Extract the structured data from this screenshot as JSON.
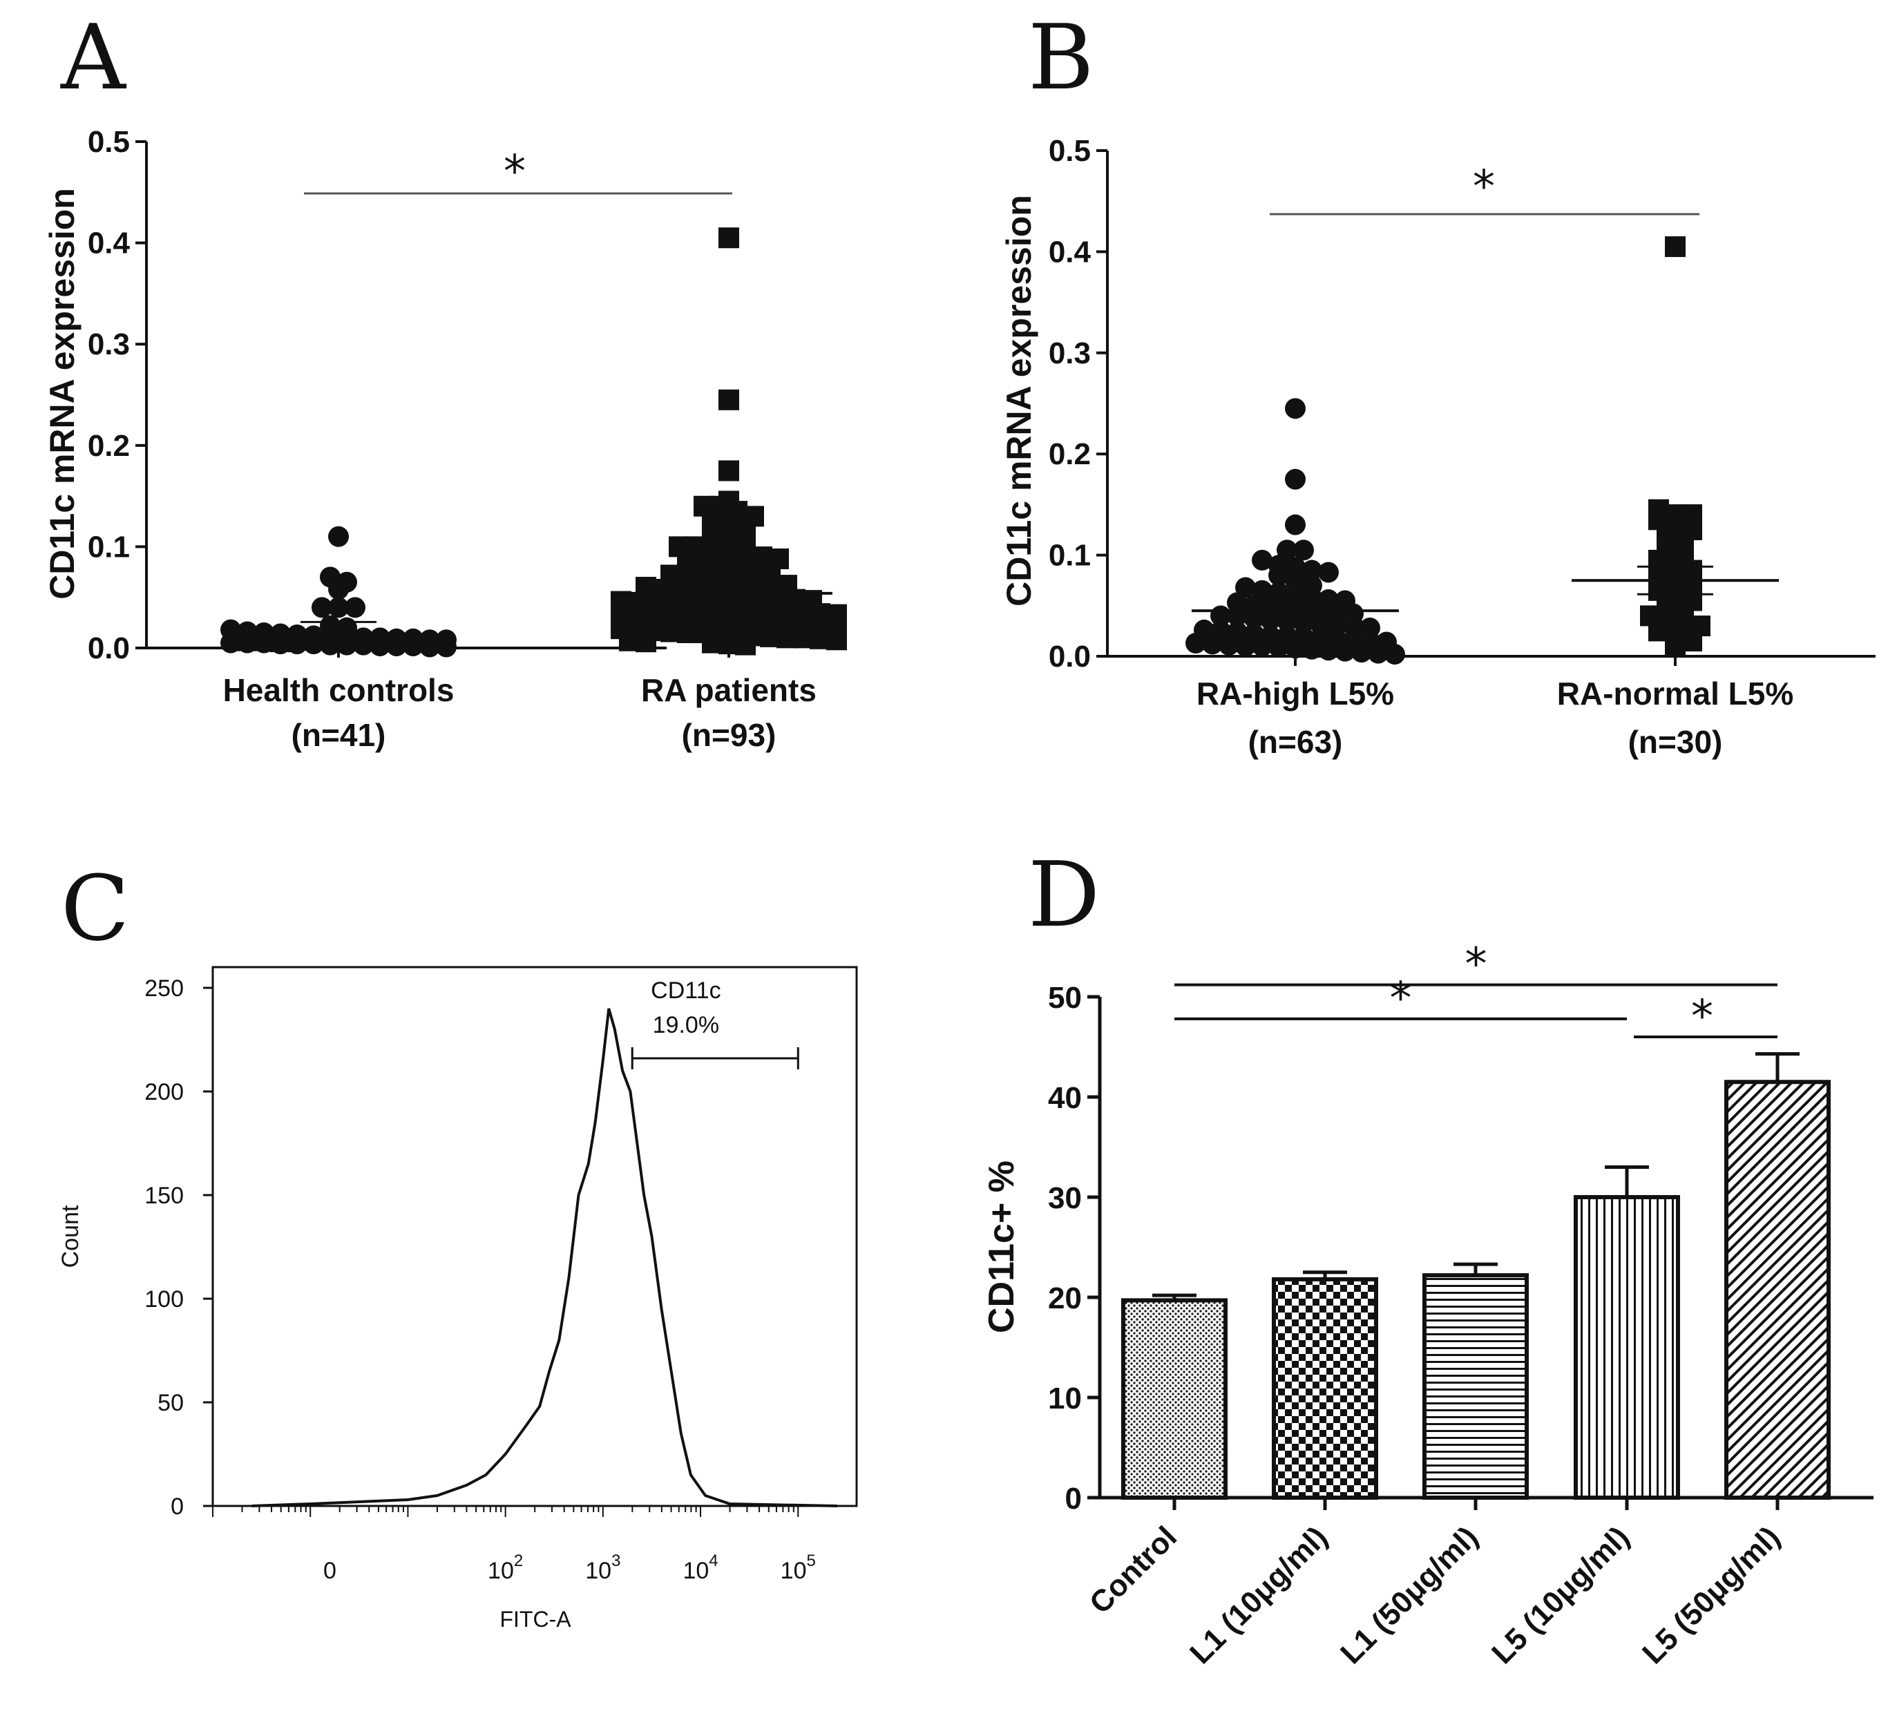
{
  "chart_data": [
    {
      "panel": "A",
      "type": "scatter",
      "ylabel": "CD11c mRNA expression",
      "ylim": [
        0,
        0.5
      ],
      "yticks": [
        "0.0",
        "0.1",
        "0.2",
        "0.3",
        "0.4",
        "0.5"
      ],
      "yticks_values": [
        0,
        0.1,
        0.2,
        0.3,
        0.4,
        0.5
      ],
      "categories": [
        {
          "label": "Health controls",
          "n": "(n=41)",
          "marker": "circle"
        },
        {
          "label": "RA patients",
          "n": "(n=93)",
          "marker": "square"
        }
      ],
      "significance": "*",
      "series": [
        {
          "name": "Health controls",
          "mean": 0.012,
          "values": [
            0.11,
            0.07,
            0.065,
            0.058,
            0.04,
            0.04,
            0.04,
            0.022,
            0.02,
            0.018,
            0.016,
            0.015,
            0.014,
            0.013,
            0.012,
            0.012,
            0.011,
            0.01,
            0.01,
            0.009,
            0.009,
            0.008,
            0.008,
            0.007,
            0.007,
            0.006,
            0.006,
            0.005,
            0.005,
            0.005,
            0.004,
            0.004,
            0.004,
            0.003,
            0.003,
            0.003,
            0.002,
            0.002,
            0.002,
            0.001,
            0.001
          ]
        },
        {
          "name": "RA patients",
          "mean": 0.054,
          "values": [
            0.405,
            0.245,
            0.175,
            0.145,
            0.14,
            0.14,
            0.135,
            0.13,
            0.125,
            0.125,
            0.12,
            0.11,
            0.11,
            0.105,
            0.1,
            0.1,
            0.095,
            0.095,
            0.09,
            0.09,
            0.088,
            0.085,
            0.082,
            0.08,
            0.08,
            0.078,
            0.075,
            0.072,
            0.07,
            0.07,
            0.068,
            0.066,
            0.065,
            0.063,
            0.062,
            0.06,
            0.058,
            0.056,
            0.055,
            0.054,
            0.053,
            0.052,
            0.05,
            0.049,
            0.048,
            0.047,
            0.046,
            0.045,
            0.044,
            0.043,
            0.042,
            0.041,
            0.04,
            0.039,
            0.038,
            0.037,
            0.036,
            0.035,
            0.034,
            0.033,
            0.032,
            0.031,
            0.03,
            0.029,
            0.028,
            0.027,
            0.026,
            0.025,
            0.024,
            0.023,
            0.022,
            0.021,
            0.02,
            0.02,
            0.019,
            0.018,
            0.017,
            0.016,
            0.015,
            0.015,
            0.014,
            0.013,
            0.012,
            0.011,
            0.01,
            0.01,
            0.009,
            0.008,
            0.007,
            0.006,
            0.005,
            0.004,
            0.003
          ]
        }
      ]
    },
    {
      "panel": "B",
      "type": "scatter",
      "ylabel": "CD11c mRNA expression",
      "ylim": [
        0,
        0.5
      ],
      "yticks": [
        "0.0",
        "0.1",
        "0.2",
        "0.3",
        "0.4",
        "0.5"
      ],
      "yticks_values": [
        0,
        0.1,
        0.2,
        0.3,
        0.4,
        0.5
      ],
      "categories": [
        {
          "label": "RA-high L5%",
          "n": "(n=63)",
          "marker": "circle"
        },
        {
          "label": "RA-normal L5%",
          "n": "(n=30)",
          "marker": "square"
        }
      ],
      "significance": "*",
      "series": [
        {
          "name": "RA-high L5%",
          "mean": 0.045,
          "values": [
            0.245,
            0.175,
            0.13,
            0.105,
            0.105,
            0.095,
            0.09,
            0.088,
            0.085,
            0.083,
            0.08,
            0.075,
            0.07,
            0.068,
            0.065,
            0.063,
            0.06,
            0.058,
            0.056,
            0.055,
            0.053,
            0.05,
            0.05,
            0.048,
            0.046,
            0.045,
            0.044,
            0.042,
            0.04,
            0.04,
            0.038,
            0.036,
            0.035,
            0.033,
            0.032,
            0.03,
            0.03,
            0.028,
            0.026,
            0.025,
            0.024,
            0.022,
            0.02,
            0.02,
            0.019,
            0.018,
            0.017,
            0.016,
            0.015,
            0.014,
            0.013,
            0.012,
            0.011,
            0.01,
            0.01,
            0.009,
            0.008,
            0.007,
            0.006,
            0.005,
            0.004,
            0.003,
            0.002
          ]
        },
        {
          "name": "RA-normal L5%",
          "mean": 0.075,
          "values": [
            0.405,
            0.145,
            0.14,
            0.14,
            0.135,
            0.13,
            0.125,
            0.12,
            0.11,
            0.1,
            0.1,
            0.095,
            0.09,
            0.085,
            0.08,
            0.075,
            0.07,
            0.065,
            0.06,
            0.055,
            0.05,
            0.045,
            0.04,
            0.035,
            0.03,
            0.03,
            0.025,
            0.02,
            0.015,
            0.01
          ]
        }
      ]
    },
    {
      "panel": "C",
      "type": "line",
      "xlabel": "FITC-A",
      "ylabel": "Count",
      "ylim": [
        0,
        260
      ],
      "yticks": [
        "0",
        "50",
        "100",
        "150",
        "200",
        "250"
      ],
      "yticks_values": [
        0,
        50,
        100,
        150,
        200,
        250
      ],
      "xlim": [
        -1,
        5.6
      ],
      "xticks": [
        {
          "value": 0.2,
          "base": "0",
          "exp": ""
        },
        {
          "value": 2,
          "base": "10",
          "exp": "2"
        },
        {
          "value": 3,
          "base": "10",
          "exp": "3"
        },
        {
          "value": 4,
          "base": "10",
          "exp": "4"
        },
        {
          "value": 5,
          "base": "10",
          "exp": "5"
        }
      ],
      "gate": {
        "label": "CD11c",
        "value": "19.0%",
        "from": 3.3,
        "to": 5.0,
        "y": 216
      },
      "histogram": {
        "x": [
          -0.6,
          0.0,
          0.5,
          1.0,
          1.3,
          1.6,
          1.8,
          2.0,
          2.2,
          2.35,
          2.45,
          2.55,
          2.65,
          2.75,
          2.85,
          2.92,
          3.0,
          3.06,
          3.12,
          3.2,
          3.28,
          3.35,
          3.42,
          3.5,
          3.6,
          3.7,
          3.8,
          3.9,
          4.05,
          4.3,
          5.4
        ],
        "y": [
          0,
          1,
          2,
          3,
          5,
          10,
          15,
          25,
          38,
          48,
          65,
          80,
          110,
          150,
          165,
          185,
          215,
          240,
          230,
          210,
          200,
          175,
          150,
          130,
          95,
          65,
          35,
          15,
          5,
          1,
          0
        ]
      }
    },
    {
      "panel": "D",
      "type": "bar",
      "ylabel": "CD11c+ %",
      "ylim": [
        0,
        50
      ],
      "yticks": [
        "0",
        "10",
        "20",
        "30",
        "40",
        "50"
      ],
      "yticks_values": [
        0,
        10,
        20,
        30,
        40,
        50
      ],
      "categories": [
        "Control",
        "L1 (10μg/ml)",
        "L1 (50μg/ml)",
        "L5 (10μg/ml)",
        "L5 (50μg/ml)"
      ],
      "values": [
        19.7,
        21.8,
        22.2,
        30.0,
        41.5
      ],
      "errors": [
        0.5,
        0.7,
        1.1,
        3.0,
        2.8
      ],
      "patterns": [
        "dots",
        "checker",
        "hlines",
        "vlines",
        "diagonal"
      ],
      "significance": [
        {
          "from": 0,
          "to": 4,
          "y": 51.2,
          "label": "*"
        },
        {
          "from": 0,
          "to": 3,
          "y": 47.8,
          "label": "*"
        },
        {
          "from": 3,
          "to": 4,
          "y": 46.0,
          "label": "*"
        }
      ]
    }
  ]
}
